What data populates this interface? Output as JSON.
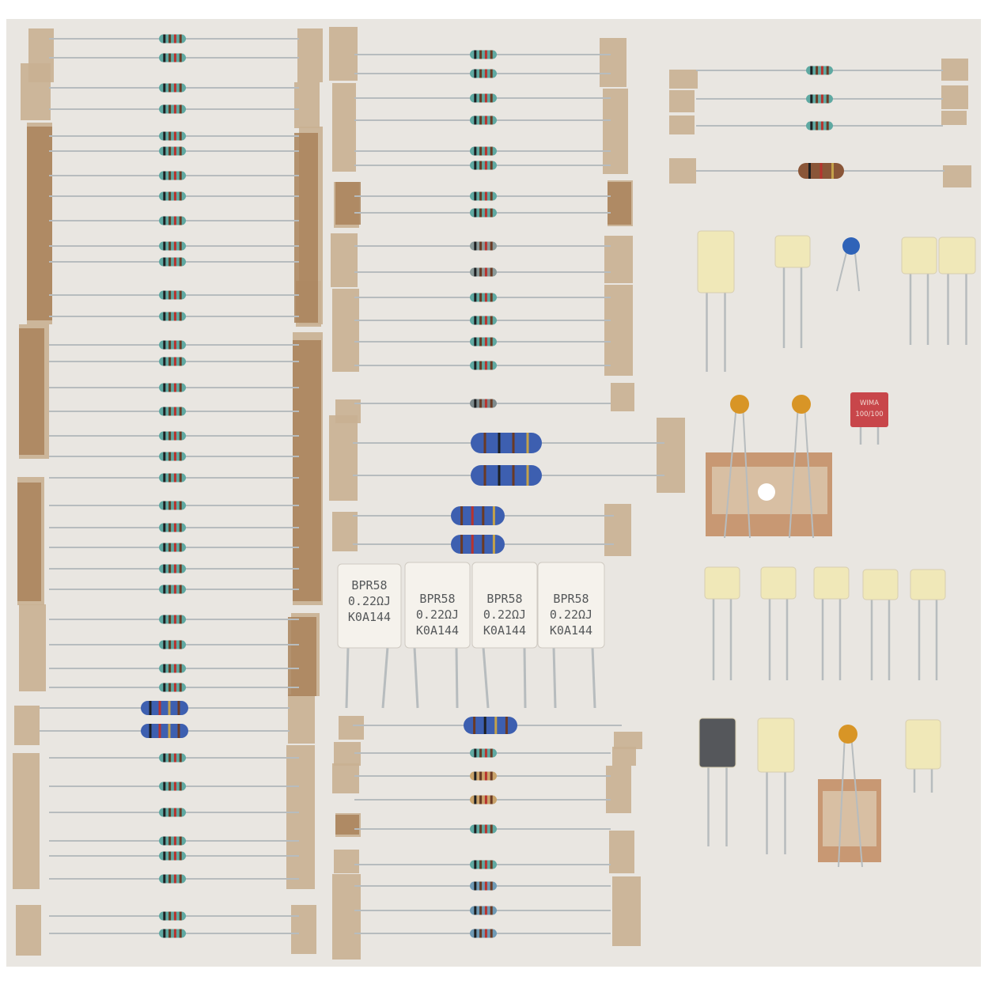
{
  "photo": {
    "background_color": "#e9e6e1",
    "border_color": "#ffffff",
    "tape_color": "#c9b092",
    "tape_dark_color": "#a9825a",
    "lead_color": "#b7bcbe"
  },
  "power_resistors": [
    {
      "line1": "BPR58",
      "line2": "0.22ΩJ",
      "line3": "K0A144"
    },
    {
      "line1": "BPR58",
      "line2": "0.22ΩJ",
      "line3": "K0A144"
    },
    {
      "line1": "BPR58",
      "line2": "0.22ΩJ",
      "line3": "K0A144"
    },
    {
      "line1": "BPR58",
      "line2": "0.22ΩJ",
      "line3": "K0A144"
    }
  ],
  "wima_capacitor": {
    "line1": "WIMA",
    "line2": "100/100"
  },
  "colors": {
    "resistor_teal": "#5fa9a2",
    "resistor_blue_body": "#3d5fb0",
    "resistor_tan": "#c9a36b",
    "resistor_brown": "#8a5638",
    "cap_yellow": "#f0e8b8",
    "cap_gray": "#55575b",
    "cap_blue": "#2f63b8",
    "cap_orange": "#d89526",
    "wima_red": "#c8464a"
  }
}
